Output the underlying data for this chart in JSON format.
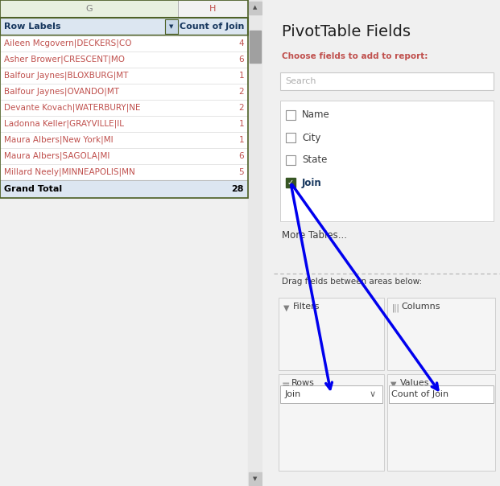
{
  "title": "PivotTable Fields",
  "subtitle": "Choose fields to add to report:",
  "search_placeholder": "Search",
  "fields": [
    "Name",
    "City",
    "State",
    "Join"
  ],
  "checked_field": "Join",
  "more_tables": "More Tables...",
  "drag_label": "Drag fields between areas below:",
  "areas": [
    "Filters",
    "Columns",
    "Rows",
    "Values"
  ],
  "rows_value": "Join",
  "values_value": "Count of Join",
  "col_g_label": "G",
  "col_h_label": "H",
  "header_row_label": "Row Labels",
  "header_count_label": "Count of Join",
  "rows": [
    {
      "label": "Aileen Mcgovern|DECKERS|CO",
      "count": 4
    },
    {
      "label": "Asher Brower|CRESCENT|MO",
      "count": 6
    },
    {
      "label": "Balfour Jaynes|BLOXBURG|MT",
      "count": 1
    },
    {
      "label": "Balfour Jaynes|OVANDO|MT",
      "count": 2
    },
    {
      "label": "Devante Kovach|WATERBURY|NE",
      "count": 2
    },
    {
      "label": "Ladonna Keller|GRAYVILLE|IL",
      "count": 1
    },
    {
      "label": "Maura Albers|New York|MI",
      "count": 1
    },
    {
      "label": "Maura Albers|SAGOLA|MI",
      "count": 6
    },
    {
      "label": "Millard Neely|MINNEAPOLIS|MN",
      "count": 5
    }
  ],
  "grand_total": 28,
  "bg_white": "#ffffff",
  "bg_light": "#f0f0f0",
  "header_bg": "#dce6f1",
  "grand_total_bg": "#dce6f1",
  "col_g_bg": "#e8f0e0",
  "col_h_bg": "#f2f2f2",
  "row_text_color": "#c0504d",
  "header_text_color": "#17375e",
  "arrow_color": "#0000ee",
  "checkbox_checked_color": "#375623",
  "join_bold_color": "#17375e",
  "scrollbar_bg": "#d0d0d0",
  "scrollbar_handle": "#a0a0a0",
  "green_border": "#4f6228",
  "fig_w": 6.21,
  "fig_h": 6.04,
  "dpi": 100
}
